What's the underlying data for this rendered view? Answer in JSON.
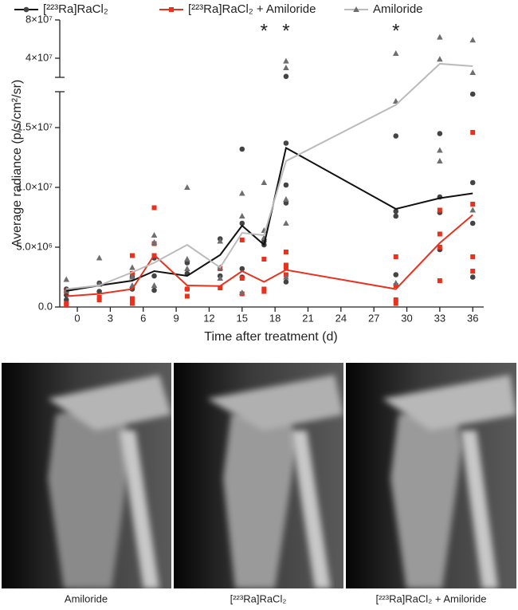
{
  "chart_data": {
    "type": "line",
    "y_label": "Average radiance (p/s/cm²/sr)",
    "x_label": "Time after treatment (d)",
    "x": [
      -1,
      2,
      5,
      7,
      10,
      13,
      15,
      17,
      19,
      29,
      33,
      36
    ],
    "xlim": [
      -1.6,
      37
    ],
    "xticks": [
      0,
      3,
      6,
      9,
      12,
      15,
      18,
      21,
      24,
      27,
      30,
      33,
      36
    ],
    "ylim": [
      0,
      80000000
    ],
    "axis_break": [
      18000000,
      20000000
    ],
    "yticks": [
      {
        "value": 0,
        "label": "0.0"
      },
      {
        "value": 5000000,
        "label": "5.0×10⁶"
      },
      {
        "value": 10000000,
        "label": "1.0×10⁷"
      },
      {
        "value": 15000000,
        "label": "1.5×10⁷"
      },
      {
        "value": 40000000,
        "label": "4×10⁷"
      },
      {
        "value": 80000000,
        "label": "8×10⁷"
      }
    ],
    "annotations": [
      {
        "x": 17,
        "text": "*"
      },
      {
        "x": 19,
        "text": "*"
      },
      {
        "x": 29,
        "text": "*"
      }
    ],
    "series": [
      {
        "name": "[²²³Ra]RaCl₂",
        "color": "#111111",
        "marker": "circle",
        "marker_color": "#444444",
        "values": [
          1340000,
          1800000,
          2200000,
          3000000,
          2600000,
          4350000,
          6800000,
          5200000,
          13300000,
          8200000,
          9100000,
          9500000
        ],
        "points_x": [
          -1,
          -1,
          -1,
          2,
          2,
          5,
          5,
          5,
          7,
          7,
          7,
          10,
          10,
          10,
          13,
          13,
          15,
          15,
          15,
          15,
          17,
          17,
          19,
          19,
          19,
          19,
          19,
          29,
          29,
          29,
          29,
          33,
          33,
          33,
          33,
          36,
          36,
          36,
          36
        ],
        "points_y": [
          1000000,
          1500000,
          600000,
          1300000,
          2000000,
          2500000,
          1500000,
          2800000,
          2600000,
          1400000,
          4100000,
          3700000,
          1500000,
          2800000,
          5700000,
          2600000,
          13200000,
          7000000,
          3200000,
          2500000,
          5200000,
          5500000,
          13700000,
          10200000,
          8700000,
          2100000,
          21000000,
          14300000,
          8000000,
          7600000,
          2700000,
          14500000,
          7900000,
          9200000,
          4800000,
          17800000,
          10400000,
          7000000,
          2500000
        ]
      },
      {
        "name": "[²²³Ra]RaCl₂ + Amiloride",
        "color": "#e8321e",
        "marker": "square",
        "marker_color": "#e8321e",
        "values": [
          900000,
          1100000,
          1500000,
          4350000,
          1800000,
          1750000,
          3000000,
          2100000,
          3100000,
          1500000,
          5350000,
          7700000
        ],
        "points_x": [
          -1,
          -1,
          -1,
          2,
          2,
          5,
          5,
          5,
          5,
          7,
          7,
          7,
          10,
          10,
          13,
          13,
          15,
          15,
          15,
          17,
          17,
          17,
          19,
          19,
          19,
          19,
          29,
          29,
          29,
          29,
          33,
          33,
          33,
          33,
          36,
          36,
          36,
          36
        ],
        "points_y": [
          300000,
          1300000,
          200000,
          800000,
          600000,
          4300000,
          2800000,
          300000,
          700000,
          8300000,
          5300000,
          4300000,
          900000,
          1500000,
          3200000,
          1600000,
          5600000,
          2400000,
          1100000,
          4000000,
          1500000,
          1300000,
          4600000,
          3500000,
          3300000,
          2700000,
          4200000,
          1800000,
          600000,
          300000,
          8100000,
          6100000,
          5000000,
          2200000,
          14600000,
          8600000,
          4200000,
          3000000
        ]
      },
      {
        "name": "Amiloride",
        "color": "#bbbbbb",
        "marker": "triangle",
        "marker_color": "#6e6e6e",
        "values": [
          1500000,
          1800000,
          2900000,
          3700000,
          5200000,
          3300000,
          6200000,
          6000000,
          12200000,
          16900000,
          34200000,
          31700000
        ],
        "points_x": [
          -1,
          -1,
          2,
          2,
          5,
          5,
          5,
          7,
          7,
          7,
          10,
          10,
          10,
          13,
          13,
          13,
          15,
          15,
          15,
          17,
          17,
          17,
          19,
          19,
          19,
          19,
          19,
          29,
          29,
          29,
          33,
          33,
          33,
          33,
          36,
          36,
          36
        ],
        "points_y": [
          2300000,
          1400000,
          4100000,
          1900000,
          3300000,
          2500000,
          1800000,
          6000000,
          5400000,
          1800000,
          10000000,
          4000000,
          3200000,
          5500000,
          3300000,
          2400000,
          9500000,
          7600000,
          1200000,
          10400000,
          6400000,
          5800000,
          37000000,
          30000000,
          9000000,
          7000000,
          2500000,
          45000000,
          17200000,
          2000000,
          62000000,
          39000000,
          13100000,
          12200000,
          59000000,
          25000000,
          8100000
        ]
      }
    ]
  },
  "images": [
    {
      "caption": "Amiloride"
    },
    {
      "caption": "[²²³Ra]RaCl₂"
    },
    {
      "caption": "[²²³Ra]RaCl₂ + Amiloride"
    }
  ]
}
